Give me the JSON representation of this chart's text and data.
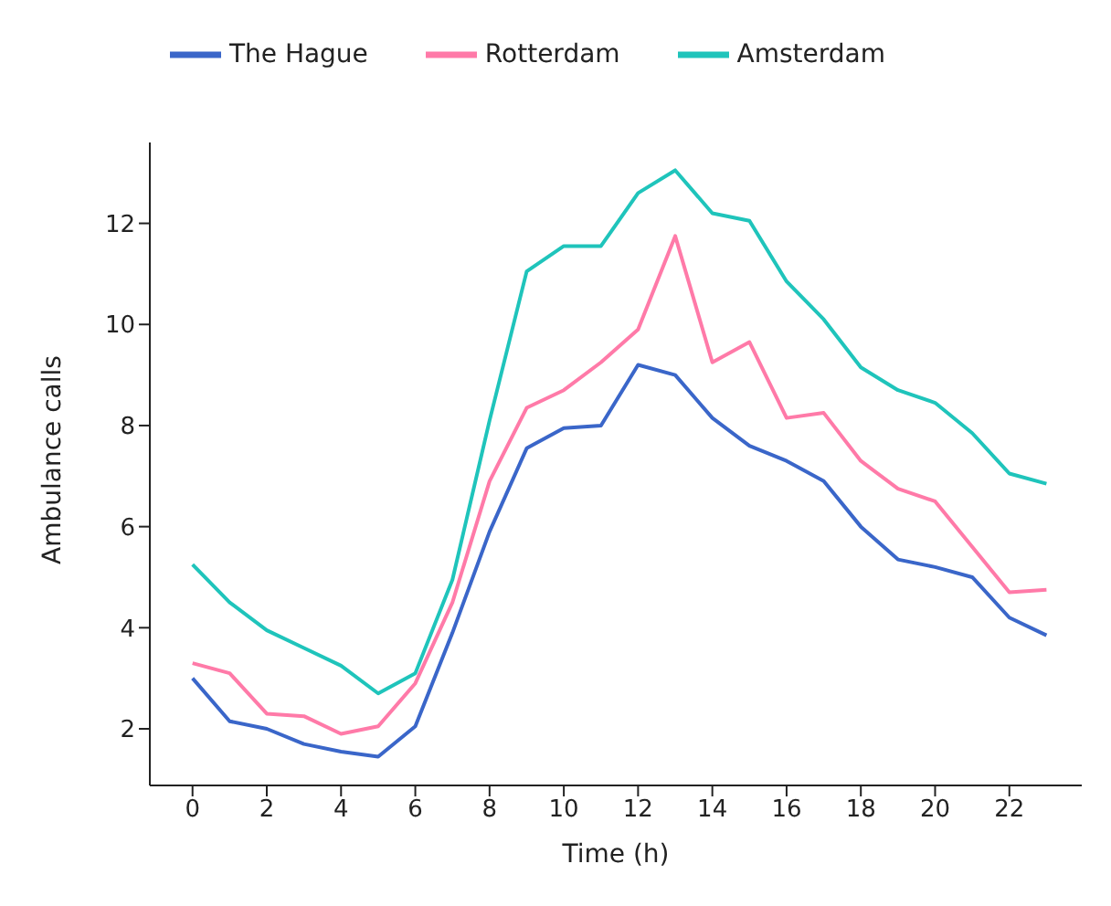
{
  "chart_data": {
    "type": "line",
    "xlabel": "Time (h)",
    "ylabel": "Ambulance calls",
    "x": [
      0,
      1,
      2,
      3,
      4,
      5,
      6,
      7,
      8,
      9,
      10,
      11,
      12,
      13,
      14,
      15,
      16,
      17,
      18,
      19,
      20,
      21,
      22,
      23
    ],
    "series": [
      {
        "name": "The Hague",
        "color": "#3a66c9",
        "values": [
          3.0,
          2.15,
          2.0,
          1.7,
          1.55,
          1.45,
          2.05,
          3.9,
          5.9,
          7.55,
          7.95,
          8.0,
          9.2,
          9.0,
          8.15,
          7.6,
          7.3,
          6.9,
          6.0,
          5.35,
          5.2,
          5.0,
          4.2,
          3.85
        ]
      },
      {
        "name": "Rotterdam",
        "color": "#ff7aa8",
        "values": [
          3.3,
          3.1,
          2.3,
          2.25,
          1.9,
          2.05,
          2.9,
          4.5,
          6.9,
          8.35,
          8.7,
          9.25,
          9.9,
          11.75,
          9.25,
          9.65,
          8.15,
          8.25,
          7.3,
          6.75,
          6.5,
          5.6,
          4.7,
          4.75
        ]
      },
      {
        "name": "Amsterdam",
        "color": "#1fc4bb",
        "values": [
          5.25,
          4.5,
          3.95,
          3.6,
          3.25,
          2.7,
          3.1,
          4.95,
          8.1,
          11.05,
          11.55,
          11.55,
          12.6,
          13.05,
          12.2,
          12.05,
          10.85,
          10.1,
          9.15,
          8.7,
          8.45,
          7.85,
          7.05,
          6.85
        ]
      }
    ],
    "xlim": [
      -1.15,
      23.95
    ],
    "xticks": [
      0,
      2,
      4,
      6,
      8,
      10,
      12,
      14,
      16,
      18,
      20,
      22
    ],
    "ylim": [
      0.88,
      13.6
    ],
    "yticks": [
      2,
      4,
      6,
      8,
      10,
      12
    ],
    "grid": false,
    "legend": "top",
    "marker": "none",
    "line_style": "solid"
  }
}
